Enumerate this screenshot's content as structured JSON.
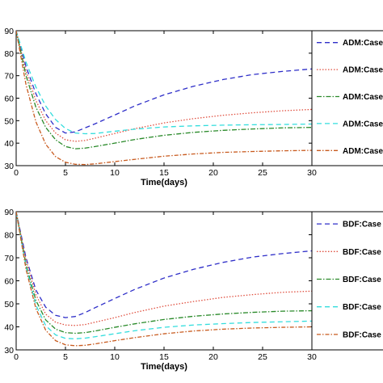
{
  "chart_data": [
    {
      "type": "line",
      "xlabel": "Time(days)",
      "ylabel": "",
      "xlim": [
        0,
        30
      ],
      "ylim": [
        30,
        90
      ],
      "xticks": [
        0,
        5,
        10,
        15,
        20,
        25,
        30
      ],
      "yticks": [
        30,
        40,
        50,
        60,
        70,
        80,
        90
      ],
      "grid": false,
      "legend_position": "right-outside",
      "series": [
        {
          "name": "ADM:Case",
          "color": "#2e2ec8",
          "dash": "6,4",
          "x": [
            0,
            1,
            2,
            3,
            4,
            5,
            6,
            7,
            8,
            10,
            12,
            15,
            18,
            21,
            24,
            27,
            30
          ],
          "y": [
            90,
            74,
            62,
            53,
            47,
            44.5,
            45,
            46.8,
            48.6,
            52.5,
            56.5,
            61.5,
            65.3,
            68.3,
            70.5,
            71.9,
            73
          ]
        },
        {
          "name": "ADM:Case",
          "color": "#e05040",
          "dash": "1.5,2",
          "x": [
            0,
            1,
            2,
            3,
            4,
            5,
            6,
            7,
            8,
            10,
            12,
            15,
            18,
            21,
            24,
            27,
            30
          ],
          "y": [
            90,
            72,
            59,
            50,
            44.5,
            41.5,
            40.8,
            41.2,
            42.2,
            44.3,
            46.4,
            49,
            50.9,
            52.4,
            53.5,
            54.4,
            55
          ]
        },
        {
          "name": "ADM:Case",
          "color": "#2a8a2a",
          "dash": "6,2,1.5,2",
          "x": [
            0,
            1,
            2,
            3,
            4,
            5,
            6,
            7,
            8,
            10,
            12,
            15,
            18,
            21,
            24,
            27,
            30
          ],
          "y": [
            90,
            70,
            56,
            47,
            41.5,
            38.5,
            37.5,
            37.8,
            38.5,
            40,
            41.6,
            43.5,
            44.8,
            45.7,
            46.3,
            46.8,
            47
          ]
        },
        {
          "name": "ADM:Case",
          "color": "#33dddd",
          "dash": "6,4",
          "x": [
            0,
            1,
            2,
            3,
            4,
            5,
            6,
            7,
            8,
            10,
            12,
            15,
            18,
            21,
            24,
            27,
            30
          ],
          "y": [
            90,
            76,
            65,
            56.5,
            50.5,
            46.5,
            44.5,
            44.2,
            44.3,
            45.3,
            46.2,
            47.2,
            47.7,
            48,
            48.2,
            48.3,
            48.5
          ]
        },
        {
          "name": "ADM:Case",
          "color": "#c85a1e",
          "dash": "5,2,1.5,2",
          "x": [
            0,
            1,
            2,
            3,
            4,
            5,
            6,
            7,
            8,
            10,
            12,
            15,
            18,
            21,
            24,
            27,
            30
          ],
          "y": [
            90,
            66,
            49.5,
            39.5,
            34,
            31.5,
            30.6,
            30.5,
            30.8,
            31.8,
            32.8,
            34.2,
            35.2,
            35.9,
            36.3,
            36.6,
            36.8
          ]
        }
      ]
    },
    {
      "type": "line",
      "xlabel": "Time(days)",
      "ylabel": "",
      "xlim": [
        0,
        30
      ],
      "ylim": [
        30,
        90
      ],
      "xticks": [
        0,
        5,
        10,
        15,
        20,
        25,
        30
      ],
      "yticks": [
        30,
        40,
        50,
        60,
        70,
        80,
        90
      ],
      "grid": false,
      "legend_position": "right-outside",
      "series": [
        {
          "name": "BDF:Case",
          "color": "#2e2ec8",
          "dash": "6,4",
          "x": [
            0,
            1,
            2,
            3,
            4,
            5,
            6,
            7,
            8,
            10,
            12,
            15,
            18,
            21,
            24,
            27,
            30
          ],
          "y": [
            90,
            70,
            56,
            48.5,
            45,
            44,
            44.5,
            46.2,
            48.3,
            52.3,
            56.2,
            61.2,
            65,
            68,
            70.3,
            71.8,
            73
          ]
        },
        {
          "name": "BDF:Case",
          "color": "#e05040",
          "dash": "1.5,2",
          "x": [
            0,
            1,
            2,
            3,
            4,
            5,
            6,
            7,
            8,
            10,
            12,
            15,
            18,
            21,
            24,
            27,
            30
          ],
          "y": [
            90,
            69,
            54,
            45.5,
            42,
            40.8,
            40.6,
            41,
            42,
            44,
            46.2,
            49,
            51,
            52.8,
            54,
            55,
            55.5
          ]
        },
        {
          "name": "BDF:Case",
          "color": "#2a8a2a",
          "dash": "6,2,1.5,2",
          "x": [
            0,
            1,
            2,
            3,
            4,
            5,
            6,
            7,
            8,
            10,
            12,
            15,
            18,
            21,
            24,
            27,
            30
          ],
          "y": [
            90,
            67,
            51.5,
            43,
            39,
            37.5,
            37.2,
            37.5,
            38.2,
            39.8,
            41.3,
            43.2,
            44.6,
            45.6,
            46.3,
            46.8,
            47
          ]
        },
        {
          "name": "BDF:Case",
          "color": "#33dddd",
          "dash": "6,4",
          "x": [
            0,
            1,
            2,
            3,
            4,
            5,
            6,
            7,
            8,
            10,
            12,
            15,
            18,
            21,
            24,
            27,
            30
          ],
          "y": [
            90,
            66,
            49.5,
            40.5,
            36.5,
            35,
            34.8,
            35.1,
            35.7,
            37,
            38.3,
            39.8,
            40.8,
            41.4,
            41.9,
            42.2,
            42.5
          ]
        },
        {
          "name": "BDF:Case",
          "color": "#c85a1e",
          "dash": "5,2,1.5,2",
          "x": [
            0,
            1,
            2,
            3,
            4,
            5,
            6,
            7,
            8,
            10,
            12,
            15,
            18,
            21,
            24,
            27,
            30
          ],
          "y": [
            90,
            65,
            48,
            38.5,
            34,
            32.2,
            31.8,
            32,
            32.6,
            34,
            35.3,
            37,
            38.2,
            39,
            39.5,
            39.8,
            40
          ]
        }
      ]
    }
  ]
}
